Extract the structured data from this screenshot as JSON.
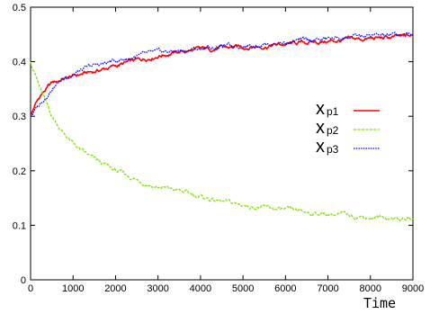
{
  "chart_data": {
    "type": "line",
    "title": "",
    "xlabel": "Time",
    "ylabel": "",
    "xlim": [
      0,
      9000
    ],
    "ylim": [
      0,
      0.5
    ],
    "grid": false,
    "legend_position": "right",
    "x_ticks": [
      0,
      1000,
      2000,
      3000,
      4000,
      5000,
      6000,
      7000,
      8000,
      9000
    ],
    "x_tick_labels": [
      "0",
      "1000",
      "2000",
      "3000",
      "4000",
      "5000",
      "6000",
      "7000",
      "8000",
      "9000"
    ],
    "y_ticks": [
      0,
      0.1,
      0.2,
      0.3,
      0.4,
      0.5
    ],
    "y_tick_labels": [
      "0",
      "0.1",
      "0.2",
      "0.3",
      "0.4",
      "0.5"
    ],
    "x": [
      0,
      100,
      250,
      500,
      750,
      1000,
      1250,
      1500,
      2000,
      2500,
      3000,
      3500,
      4000,
      4500,
      5000,
      5500,
      6000,
      6500,
      7000,
      7500,
      8000,
      8500,
      9000
    ],
    "series": [
      {
        "name": "x_p1",
        "legend_main": "x",
        "legend_sub": "p1",
        "color": "#ff0000",
        "style": "solid",
        "values": [
          0.3,
          0.32,
          0.34,
          0.36,
          0.368,
          0.373,
          0.378,
          0.382,
          0.392,
          0.402,
          0.412,
          0.418,
          0.422,
          0.425,
          0.427,
          0.429,
          0.432,
          0.435,
          0.437,
          0.44,
          0.442,
          0.444,
          0.447
        ]
      },
      {
        "name": "x_p2",
        "legend_main": "x",
        "legend_sub": "p2",
        "color": "#80e000",
        "style": "dashed",
        "values": [
          0.4,
          0.38,
          0.345,
          0.3,
          0.272,
          0.25,
          0.233,
          0.22,
          0.2,
          0.183,
          0.17,
          0.163,
          0.152,
          0.143,
          0.137,
          0.132,
          0.127,
          0.124,
          0.121,
          0.118,
          0.115,
          0.113,
          0.111
        ]
      },
      {
        "name": "x_p3",
        "legend_main": "x",
        "legend_sub": "p3",
        "color": "#0000ff",
        "style": "dotted",
        "values": [
          0.3,
          0.31,
          0.325,
          0.352,
          0.368,
          0.378,
          0.386,
          0.392,
          0.402,
          0.41,
          0.416,
          0.42,
          0.424,
          0.428,
          0.43,
          0.433,
          0.436,
          0.439,
          0.442,
          0.445,
          0.447,
          0.448,
          0.45
        ]
      }
    ]
  }
}
